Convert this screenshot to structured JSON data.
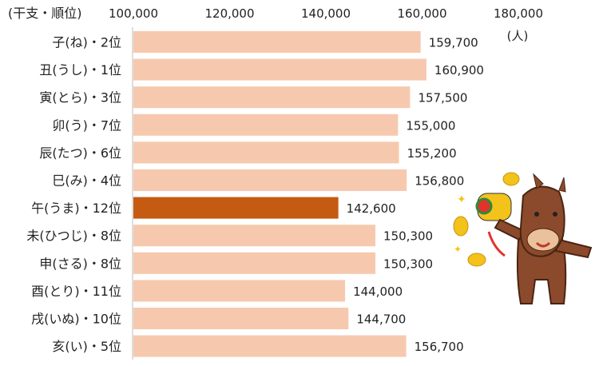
{
  "chart_data": {
    "type": "bar",
    "orientation": "horizontal",
    "ylabel": "(干支・順位)",
    "unit_label": "(人)",
    "xlim": [
      100000,
      180000
    ],
    "x_ticks": [
      "100,000",
      "120,000",
      "140,000",
      "160,000",
      "180,000"
    ],
    "x_tick_values": [
      100000,
      120000,
      140000,
      160000,
      180000
    ],
    "categories": [
      "子(ね)・2位",
      "丑(うし)・1位",
      "寅(とら)・3位",
      "卯(う)・7位",
      "辰(たつ)・6位",
      "巳(み)・4位",
      "午(うま)・12位",
      "未(ひつじ)・8位",
      "申(さる)・8位",
      "酉(とり)・11位",
      "戌(いぬ)・10位",
      "亥(い)・5位"
    ],
    "values": [
      159700,
      160900,
      157500,
      155000,
      155200,
      156800,
      142600,
      150300,
      150300,
      144000,
      144700,
      156700
    ],
    "value_labels": [
      "159,700",
      "160,900",
      "157,500",
      "155,000",
      "155,200",
      "156,800",
      "142,600",
      "150,300",
      "150,300",
      "144,000",
      "144,700",
      "156,700"
    ],
    "highlight_index": 6,
    "colors": {
      "bar": "#f6c9ae",
      "highlight": "#c55a11",
      "axis": "#bbbbbb"
    }
  }
}
